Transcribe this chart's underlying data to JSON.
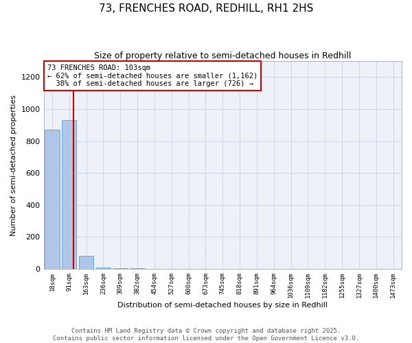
{
  "title": "73, FRENCHES ROAD, REDHILL, RH1 2HS",
  "subtitle": "Size of property relative to semi-detached houses in Redhill",
  "xlabel": "Distribution of semi-detached houses by size in Redhill",
  "ylabel": "Number of semi-detached properties",
  "bin_labels": [
    "18sqm",
    "91sqm",
    "163sqm",
    "236sqm",
    "309sqm",
    "382sqm",
    "454sqm",
    "527sqm",
    "600sqm",
    "673sqm",
    "745sqm",
    "818sqm",
    "891sqm",
    "964sqm",
    "1036sqm",
    "1109sqm",
    "1182sqm",
    "1255sqm",
    "1327sqm",
    "1400sqm",
    "1473sqm"
  ],
  "bar_heights": [
    870,
    930,
    80,
    8,
    3,
    2,
    1,
    1,
    1,
    0,
    1,
    0,
    0,
    0,
    0,
    0,
    0,
    0,
    0,
    0,
    0
  ],
  "bar_color": "#aec6e8",
  "bar_edge_color": "#5a9fd4",
  "vline_x": 1.27,
  "vline_color": "#cc0000",
  "annotation_text": "73 FRENCHES ROAD: 103sqm\n← 62% of semi-detached houses are smaller (1,162)\n  38% of semi-detached houses are larger (726) →",
  "annotation_box_color": "#cc0000",
  "ylim": [
    0,
    1300
  ],
  "yticks": [
    0,
    200,
    400,
    600,
    800,
    1000,
    1200
  ],
  "grid_color": "#d0d8e8",
  "bg_color": "#eef2f8",
  "footer_text": "Contains HM Land Registry data © Crown copyright and database right 2025.\nContains public sector information licensed under the Open Government Licence v3.0.",
  "title_fontsize": 11,
  "subtitle_fontsize": 9,
  "ylabel_fontsize": 8,
  "xlabel_fontsize": 8,
  "footer_fontsize": 6.5,
  "ann_fontsize": 7.5
}
